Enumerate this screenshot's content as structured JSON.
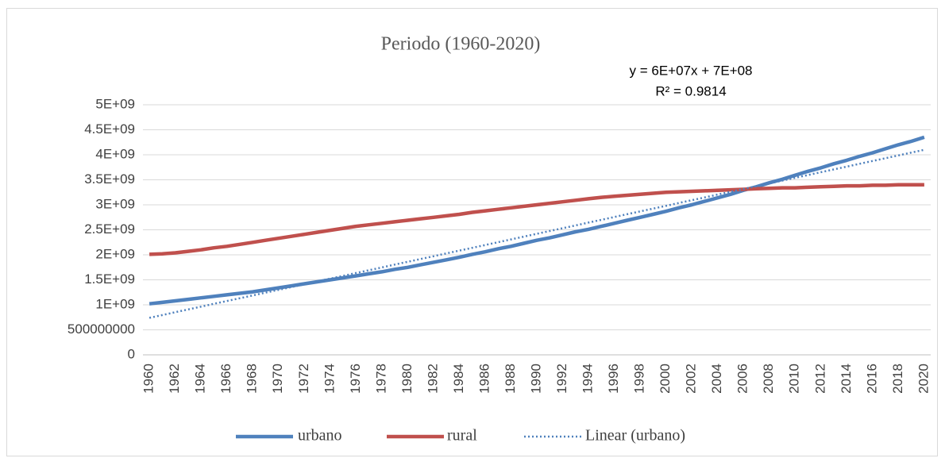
{
  "chart_data": {
    "type": "line",
    "title": "Periodo (1960-2020)",
    "annotations": [
      "y = 6E+07x + 7E+08",
      "R² = 0.9814"
    ],
    "categories": [
      "1960",
      null,
      "1962",
      null,
      "1964",
      null,
      "1966",
      null,
      "1968",
      null,
      "1970",
      null,
      "1972",
      null,
      "1974",
      null,
      "1976",
      null,
      "1978",
      null,
      "1980",
      null,
      "1982",
      null,
      "1984",
      null,
      "1986",
      null,
      "1988",
      null,
      "1990",
      null,
      "1992",
      null,
      "1994",
      null,
      "1996",
      null,
      "1998",
      null,
      "2000",
      null,
      "2002",
      null,
      "2004",
      null,
      "2006",
      null,
      "2008",
      null,
      "2010",
      null,
      "2012",
      null,
      "2014",
      null,
      "2016",
      null,
      "2018",
      null,
      "2020"
    ],
    "series": [
      {
        "name": "urbano",
        "color": "#4f81bd",
        "dash": "solid",
        "values": [
          1020000000.0,
          1050000000.0,
          1080000000.0,
          1110000000.0,
          1140000000.0,
          1170000000.0,
          1200000000.0,
          1230000000.0,
          1260000000.0,
          1300000000.0,
          1340000000.0,
          1380000000.0,
          1420000000.0,
          1460000000.0,
          1500000000.0,
          1540000000.0,
          1580000000.0,
          1620000000.0,
          1660000000.0,
          1710000000.0,
          1750000000.0,
          1800000000.0,
          1850000000.0,
          1900000000.0,
          1950000000.0,
          2010000000.0,
          2060000000.0,
          2120000000.0,
          2170000000.0,
          2230000000.0,
          2290000000.0,
          2340000000.0,
          2400000000.0,
          2460000000.0,
          2510000000.0,
          2570000000.0,
          2630000000.0,
          2690000000.0,
          2750000000.0,
          2810000000.0,
          2870000000.0,
          2940000000.0,
          3000000000.0,
          3070000000.0,
          3140000000.0,
          3210000000.0,
          3290000000.0,
          3360000000.0,
          3440000000.0,
          3510000000.0,
          3590000000.0,
          3670000000.0,
          3740000000.0,
          3820000000.0,
          3890000000.0,
          3970000000.0,
          4040000000.0,
          4120000000.0,
          4200000000.0,
          4270000000.0,
          4350000000.0
        ]
      },
      {
        "name": "rural",
        "color": "#c0504d",
        "dash": "solid",
        "values": [
          2010000000.0,
          2020000000.0,
          2040000000.0,
          2070000000.0,
          2100000000.0,
          2140000000.0,
          2170000000.0,
          2210000000.0,
          2250000000.0,
          2290000000.0,
          2330000000.0,
          2370000000.0,
          2410000000.0,
          2450000000.0,
          2490000000.0,
          2530000000.0,
          2570000000.0,
          2600000000.0,
          2630000000.0,
          2660000000.0,
          2690000000.0,
          2720000000.0,
          2750000000.0,
          2780000000.0,
          2810000000.0,
          2850000000.0,
          2880000000.0,
          2910000000.0,
          2940000000.0,
          2970000000.0,
          3000000000.0,
          3030000000.0,
          3060000000.0,
          3090000000.0,
          3120000000.0,
          3150000000.0,
          3170000000.0,
          3190000000.0,
          3210000000.0,
          3230000000.0,
          3250000000.0,
          3260000000.0,
          3270000000.0,
          3280000000.0,
          3290000000.0,
          3300000000.0,
          3310000000.0,
          3320000000.0,
          3330000000.0,
          3340000000.0,
          3340000000.0,
          3350000000.0,
          3360000000.0,
          3370000000.0,
          3380000000.0,
          3380000000.0,
          3390000000.0,
          3390000000.0,
          3400000000.0,
          3400000000.0,
          3400000000.0
        ]
      },
      {
        "name": "Linear (urbano)",
        "color": "#4f81bd",
        "dash": "dotted",
        "values": [
          740000000.0,
          796000000.0,
          852000000.0,
          908000000.0,
          964000000.0,
          1020000000.0,
          1076000000.0,
          1132000000.0,
          1188000000.0,
          1244000000.0,
          1300000000.0,
          1356000000.0,
          1412000000.0,
          1468000000.0,
          1524000000.0,
          1580000000.0,
          1636000000.0,
          1692000000.0,
          1748000000.0,
          1804000000.0,
          1860000000.0,
          1916000000.0,
          1972000000.0,
          2028000000.0,
          2084000000.0,
          2140000000.0,
          2196000000.0,
          2252000000.0,
          2308000000.0,
          2364000000.0,
          2420000000.0,
          2476000000.0,
          2532000000.0,
          2588000000.0,
          2644000000.0,
          2700000000.0,
          2756000000.0,
          2812000000.0,
          2868000000.0,
          2924000000.0,
          2980000000.0,
          3036000000.0,
          3092000000.0,
          3148000000.0,
          3204000000.0,
          3260000000.0,
          3316000000.0,
          3372000000.0,
          3428000000.0,
          3484000000.0,
          3540000000.0,
          3596000000.0,
          3652000000.0,
          3708000000.0,
          3764000000.0,
          3820000000.0,
          3876000000.0,
          3932000000.0,
          3988000000.0,
          4044000000.0,
          4100000000.0
        ]
      }
    ],
    "ylim": [
      0,
      5000000000
    ],
    "yticks": [
      0,
      500000000,
      {
        "value": 1000000000,
        "label": "1E+09"
      },
      {
        "value": 1500000000,
        "label": "1.5E+09"
      },
      {
        "value": 2000000000,
        "label": "2E+09"
      },
      {
        "value": 2500000000,
        "label": "2.5E+09"
      },
      {
        "value": 3000000000,
        "label": "3E+09"
      },
      {
        "value": 3500000000,
        "label": "3.5E+09"
      },
      {
        "value": 4000000000,
        "label": "4E+09"
      },
      {
        "value": 4500000000,
        "label": "4.5E+09"
      },
      {
        "value": 5000000000,
        "label": "5E+09"
      }
    ],
    "grid": true,
    "legend": "bottom"
  }
}
